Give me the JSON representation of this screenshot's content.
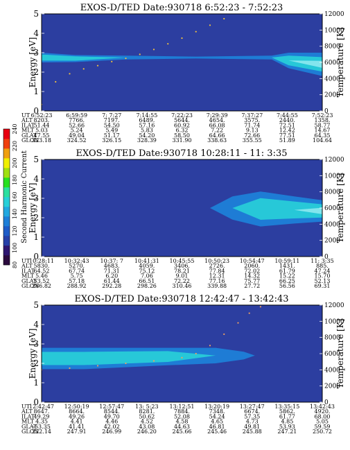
{
  "colorbar": {
    "label": "Second Harmonic Current",
    "ticks": [
      "80",
      "100",
      "120",
      "140",
      "160",
      "180",
      "200",
      "220",
      "240"
    ],
    "colors": [
      "#2b0a3e",
      "#2e1670",
      "#2640a8",
      "#1e5cc8",
      "#1e7fd8",
      "#22a8e0",
      "#28d0d8",
      "#2ce0a0",
      "#28e020",
      "#a0e010",
      "#f0f000",
      "#f0a010",
      "#f04010",
      "#e80010"
    ]
  },
  "panel_style": {
    "background": "#2c3ea0",
    "band_colors": [
      "#1e7fd8",
      "#28d0d8",
      "#8ee8f0"
    ],
    "low_energy_color": "#ffffff"
  },
  "chart_data": [
    {
      "type": "heatmap",
      "title": "EXOS-D/TED   Date:930718   6:52:23 - 7:52:23",
      "ylabel": "Energy [eV]",
      "ylabel_right": "Temperature [K]",
      "ylim": [
        0,
        5
      ],
      "ylim_right": [
        0,
        12000
      ],
      "yticks": [
        "0",
        "1",
        "2",
        "3",
        "4",
        "5"
      ],
      "yticks_right": [
        "0",
        "2000",
        "4000",
        "6000",
        "8000",
        "10000",
        "12000"
      ],
      "band": [
        {
          "t": 0.0,
          "center": 2.75,
          "halfwidth": 0.25,
          "level": 1
        },
        {
          "t": 0.12,
          "center": 2.7,
          "halfwidth": 0.18,
          "level": 1
        },
        {
          "t": 0.3,
          "center": 2.75,
          "halfwidth": 0.1,
          "level": 0
        },
        {
          "t": 0.55,
          "center": 2.75,
          "halfwidth": 0.05,
          "level": 0
        },
        {
          "t": 0.82,
          "center": 2.75,
          "halfwidth": 0.1,
          "level": 0
        },
        {
          "t": 0.88,
          "center": 2.6,
          "halfwidth": 0.4,
          "level": 1
        },
        {
          "t": 1.0,
          "center": 2.4,
          "halfwidth": 0.6,
          "level": 2
        }
      ],
      "temperature_trace": [
        {
          "t": 0.0,
          "y": 800
        },
        {
          "t": 0.05,
          "y": 3600
        },
        {
          "t": 0.1,
          "y": 4600
        },
        {
          "t": 0.15,
          "y": 5200
        },
        {
          "t": 0.2,
          "y": 5600
        },
        {
          "t": 0.25,
          "y": 6100
        },
        {
          "t": 0.3,
          "y": 6500
        },
        {
          "t": 0.35,
          "y": 7000
        },
        {
          "t": 0.4,
          "y": 7600
        },
        {
          "t": 0.45,
          "y": 8300
        },
        {
          "t": 0.5,
          "y": 9000
        },
        {
          "t": 0.55,
          "y": 9800
        },
        {
          "t": 0.6,
          "y": 10600
        },
        {
          "t": 0.65,
          "y": 11400
        }
      ],
      "table": {
        "rows": [
          "UT",
          "ALT",
          "ILAT",
          "MLT",
          "GLAT",
          "GLON"
        ],
        "columns": [
          [
            "6:52:23",
            "8203.",
            "51.44",
            "5.03",
            "47.55",
            "323.18"
          ],
          [
            "6:59:59",
            "7766.",
            "52.66",
            "5.24",
            "49.04",
            "324.52"
          ],
          [
            "7: 7:27",
            "7197.",
            "54.50",
            "5.49",
            "51.17",
            "326.15"
          ],
          [
            "7:14:55",
            "6489.",
            "57.16",
            "5.83",
            "54.20",
            "328.39"
          ],
          [
            "7:22:23",
            "5644.",
            "60.92",
            "6.32",
            "58.50",
            "331.90"
          ],
          [
            "7:29:39",
            "4654.",
            "66.08",
            "7.22",
            "64.66",
            "338.63"
          ],
          [
            "7:37:27",
            "3575.",
            "71.74",
            "9.13",
            "72.66",
            "355.55"
          ],
          [
            "7:44:55",
            "2440.",
            "72.51",
            "12.42",
            "77.51",
            "51.89"
          ],
          [
            "7:52:23",
            "1358.",
            "58.77",
            "14.67",
            "64.35",
            "104.64"
          ]
        ]
      }
    },
    {
      "type": "heatmap",
      "title": "EXOS-D/TED   Date:930718   10:28:11 - 11: 3:35",
      "ylabel": "Energy [eV]",
      "ylabel_right": "Temperature [K]",
      "ylim": [
        0,
        5
      ],
      "ylim_right": [
        0,
        12000
      ],
      "yticks": [
        "0",
        "1",
        "2",
        "3",
        "4",
        "5"
      ],
      "yticks_right": [
        "0",
        "2000",
        "4000",
        "6000",
        "8000",
        "10000",
        "12000"
      ],
      "band": [
        {
          "t": 0.0,
          "center": 2.5,
          "halfwidth": 0.0,
          "level": 0
        },
        {
          "t": 0.6,
          "center": 2.5,
          "halfwidth": 0.0,
          "level": 0
        },
        {
          "t": 0.68,
          "center": 2.5,
          "halfwidth": 0.6,
          "level": 0
        },
        {
          "t": 0.78,
          "center": 2.45,
          "halfwidth": 0.9,
          "level": 1
        },
        {
          "t": 0.9,
          "center": 2.4,
          "halfwidth": 0.7,
          "level": 1
        },
        {
          "t": 1.0,
          "center": 2.35,
          "halfwidth": 0.55,
          "level": 2
        }
      ],
      "temperature_trace": [],
      "table": {
        "rows": [
          "UT",
          "ALT",
          "ILAT",
          "MLT",
          "GLAT",
          "GLON"
        ],
        "columns": [
          [
            "10:28:11",
            "5830.",
            "64.52",
            "5.46",
            "53.52",
            "286.82"
          ],
          [
            "10:32:43",
            "5270.",
            "67.74",
            "5.75",
            "57.18",
            "288.92"
          ],
          [
            "10:37: 7",
            "4683.",
            "71.31",
            "6.20",
            "61.44",
            "292.28"
          ],
          [
            "10:41:31",
            "4059.",
            "75.12",
            "7.06",
            "66.51",
            "298.26"
          ],
          [
            "10:45:55",
            "3406.",
            "78.21",
            "9.01",
            "72.22",
            "310.46"
          ],
          [
            "10:50:23",
            "2726.",
            "77.84",
            "12.31",
            "77.16",
            "339.88"
          ],
          [
            "10:54:47",
            "2060.",
            "72.02",
            "14.32",
            "75.77",
            "27.72"
          ],
          [
            "10:59:11",
            "1431.",
            "61.79",
            "15.22",
            "66.25",
            "56.56"
          ],
          [
            "11: 3:35",
            "885.",
            "47.24",
            "15.70",
            "52.13",
            "69.31"
          ]
        ]
      }
    },
    {
      "type": "heatmap",
      "title": "EXOS-D/TED   Date:930718   12:42:47 - 13:42:43",
      "ylabel": "Energy [eV]",
      "ylabel_right": "Temperature [K]",
      "ylim": [
        0,
        5
      ],
      "ylim_right": [
        0,
        12000
      ],
      "yticks": [
        "0",
        "1",
        "2",
        "3",
        "4",
        "5"
      ],
      "yticks_right": [
        "0",
        "2000",
        "4000",
        "6000",
        "8000",
        "10000",
        "12000"
      ],
      "band": [
        {
          "t": 0.0,
          "center": 2.25,
          "halfwidth": 0.55,
          "level": 1
        },
        {
          "t": 0.15,
          "center": 2.25,
          "halfwidth": 0.55,
          "level": 1
        },
        {
          "t": 0.3,
          "center": 2.3,
          "halfwidth": 0.5,
          "level": 1
        },
        {
          "t": 0.45,
          "center": 2.35,
          "halfwidth": 0.45,
          "level": 1
        },
        {
          "t": 0.62,
          "center": 2.4,
          "halfwidth": 0.4,
          "level": 0
        },
        {
          "t": 0.72,
          "center": 2.4,
          "halfwidth": 0.2,
          "level": 0
        },
        {
          "t": 0.76,
          "center": 2.4,
          "halfwidth": 0.0,
          "level": 0
        },
        {
          "t": 1.0,
          "center": 2.4,
          "halfwidth": 0.0,
          "level": 0
        }
      ],
      "temperature_trace": [
        {
          "t": 0.0,
          "y": 4000
        },
        {
          "t": 0.1,
          "y": 4200
        },
        {
          "t": 0.2,
          "y": 4500
        },
        {
          "t": 0.3,
          "y": 4800
        },
        {
          "t": 0.4,
          "y": 5100
        },
        {
          "t": 0.5,
          "y": 5500
        },
        {
          "t": 0.55,
          "y": 6000
        },
        {
          "t": 0.6,
          "y": 7000
        },
        {
          "t": 0.65,
          "y": 8400
        },
        {
          "t": 0.7,
          "y": 9800
        },
        {
          "t": 0.74,
          "y": 11000
        },
        {
          "t": 0.78,
          "y": 11800
        }
      ],
      "table": {
        "rows": [
          "UT",
          "ALT",
          "ILAT",
          "MLT",
          "GLAT",
          "GLON"
        ],
        "columns": [
          [
            "12:42:47",
            "8647.",
            "49.29",
            "4.35",
            "-53.35",
            "222.14"
          ],
          [
            "12:50:19",
            "8664.",
            "49.26",
            "4.41",
            "41.41",
            "247.91"
          ],
          [
            "12:57:47",
            "8544.",
            "49.70",
            "4.46",
            "42.02",
            "246.99"
          ],
          [
            "13: 5:23",
            "8281.",
            "50.62",
            "4.52",
            "43.08",
            "246.20"
          ],
          [
            "13:12:51",
            "7884.",
            "52.08",
            "4.58",
            "44.63",
            "245.66"
          ],
          [
            "13:20:19",
            "7348.",
            "54.24",
            "4.65",
            "46.81",
            "245.46"
          ],
          [
            "13:27:47",
            "6674.",
            "57.35",
            "4.73",
            "49.81",
            "245.88"
          ],
          [
            "13:35:15",
            "5862.",
            "61.77",
            "4.85",
            "53.93",
            "247.21"
          ],
          [
            "13:42:43",
            "4920.",
            "68.00",
            "5.05",
            "59.59",
            "250.72"
          ]
        ]
      }
    }
  ]
}
